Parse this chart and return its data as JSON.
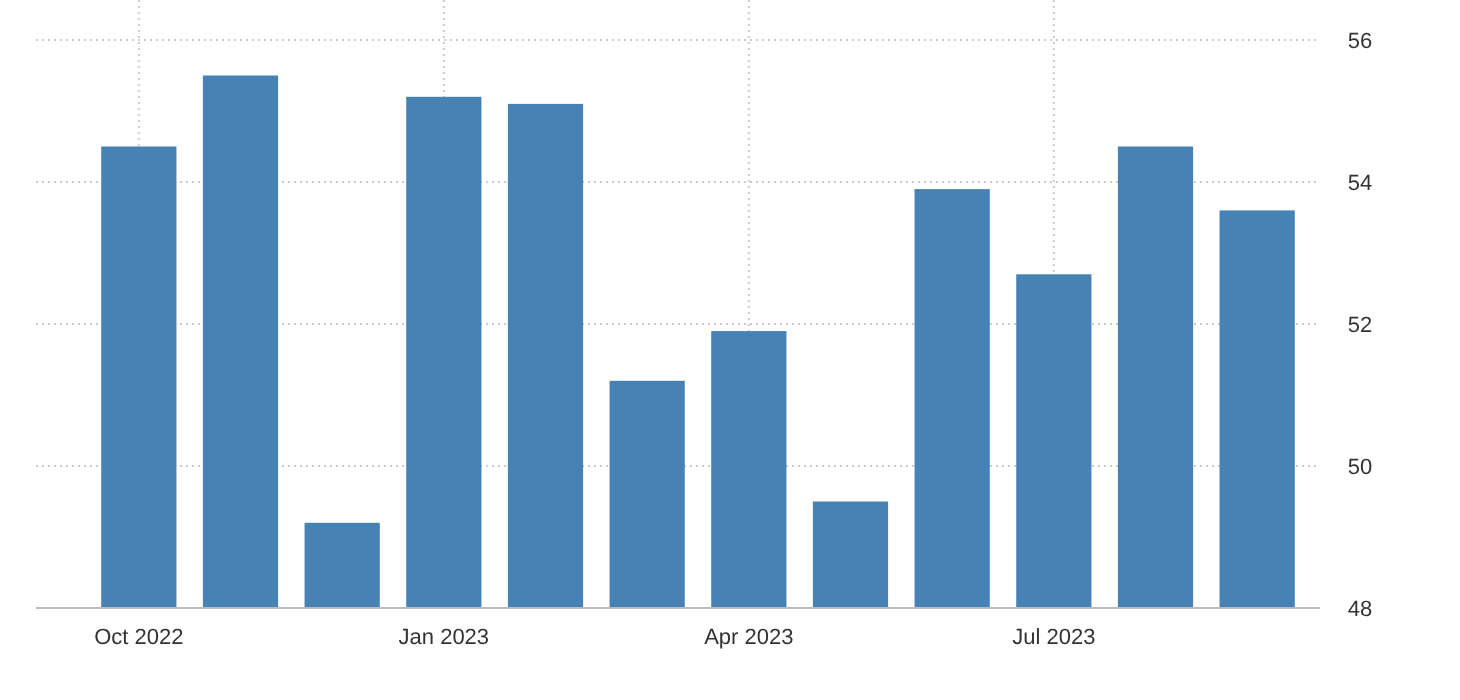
{
  "chart_data": {
    "type": "bar",
    "categories": [
      "Oct 2022",
      null,
      null,
      "Jan 2023",
      null,
      null,
      "Apr 2023",
      null,
      null,
      "Jul 2023",
      null,
      null
    ],
    "values": [
      54.5,
      55.5,
      49.2,
      55.2,
      55.1,
      51.2,
      51.9,
      49.5,
      53.9,
      52.7,
      54.5,
      53.6
    ],
    "color": "#4682b4",
    "ylim": [
      48,
      56
    ],
    "yticks": [
      48,
      50,
      52,
      54,
      56
    ],
    "grid": true
  }
}
